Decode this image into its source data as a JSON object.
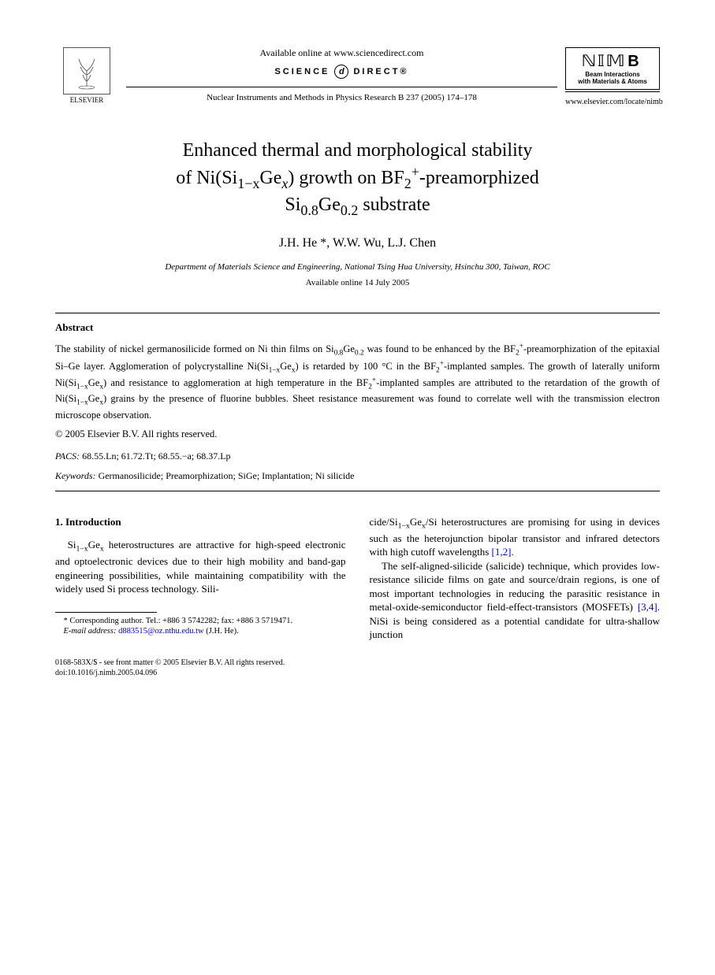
{
  "header": {
    "publisher_name": "ELSEVIER",
    "available_online": "Available online at www.sciencedirect.com",
    "sd_text_left": "SCIENCE",
    "sd_text_right": "DIRECT®",
    "journal_citation": "Nuclear Instruments and Methods in Physics Research B 237 (2005) 174–178",
    "nim_title": "NIM B",
    "nim_sub1": "Beam Interactions",
    "nim_sub2": "with Materials & Atoms",
    "journal_url": "www.elsevier.com/locate/nimb"
  },
  "title_parts": {
    "line1_pre": "Enhanced thermal and morphological stability",
    "line2_pre": "of Ni(Si",
    "line2_sub1": "1−x",
    "line2_mid": "Ge",
    "line2_sub2": "x",
    "line2_post": ") growth on BF",
    "line2_sup": "+",
    "line2_subB": "2",
    "line2_end": "-preamorphized",
    "line3_pre": "Si",
    "line3_sub1": "0.8",
    "line3_mid": "Ge",
    "line3_sub2": "0.2",
    "line3_end": " substrate"
  },
  "authors": "J.H. He *, W.W. Wu, L.J. Chen",
  "affiliation": "Department of Materials Science and Engineering, National Tsing Hua University, Hsinchu 300, Taiwan, ROC",
  "available_date": "Available online 14 July 2005",
  "abstract": {
    "heading": "Abstract",
    "body_html": "The stability of nickel germanosilicide formed on Ni thin films on Si<sub>0.8</sub>Ge<sub>0.2</sub> was found to be enhanced by the BF<sub>2</sub><sup>+</sup>-preamorphization of the epitaxial Si–Ge layer. Agglomeration of polycrystalline Ni(Si<sub>1−x</sub>Ge<sub>x</sub>) is retarded by 100 °C in the BF<sub>2</sub><sup>+</sup>-implanted samples. The growth of laterally uniform Ni(Si<sub>1−x</sub>Ge<sub>x</sub>) and resistance to agglomeration at high temperature in the BF<sub>2</sub><sup>+</sup>-implanted samples are attributed to the retardation of the growth of Ni(Si<sub>1−x</sub>Ge<sub>x</sub>) grains by the presence of fluorine bubbles. Sheet resistance measurement was found to correlate well with the transmission electron microscope observation.",
    "copyright": "© 2005 Elsevier B.V. All rights reserved."
  },
  "pacs": {
    "label": "PACS:",
    "codes": "68.55.Ln; 61.72.Tt; 68.55.−a; 68.37.Lp"
  },
  "keywords": {
    "label": "Keywords:",
    "list": "Germanosilicide; Preamorphization; SiGe; Implantation; Ni silicide"
  },
  "intro": {
    "heading": "1. Introduction",
    "col1_p1_html": "Si<sub>1−x</sub>Ge<sub>x</sub> heterostructures are attractive for high-speed electronic and optoelectronic devices due to their high mobility and band-gap engineering possibilities, while maintaining compatibility with the widely used Si process technology. Sili-",
    "col2_p1_html": "cide/Si<sub>1−x</sub>Ge<sub>x</sub>/Si heterostructures are promising for using in devices such as the heterojunction bipolar transistor and infrared detectors with high cutoff wavelengths <span class=\"ref-link\">[1,2]</span>.",
    "col2_p2_html": "The self-aligned-silicide (salicide) technique, which provides low-resistance silicide films on gate and source/drain regions, is one of most important technologies in reducing the parasitic resistance in metal-oxide-semiconductor field-effect-transistors (MOSFETs) <span class=\"ref-link\">[3,4]</span>. NiSi is being considered as a potential candidate for ultra-shallow junction"
  },
  "footnote": {
    "corr": "* Corresponding author. Tel.: +886 3 5742282; fax: +886 3 5719471.",
    "email_label": "E-mail address:",
    "email": "d883515@oz.nthu.edu.tw",
    "email_suffix": "(J.H. He)."
  },
  "footer": {
    "line1": "0168-583X/$ - see front matter © 2005 Elsevier B.V. All rights reserved.",
    "line2": "doi:10.1016/j.nimb.2005.04.096"
  },
  "colors": {
    "text": "#000000",
    "link": "#0000cc",
    "background": "#ffffff"
  }
}
